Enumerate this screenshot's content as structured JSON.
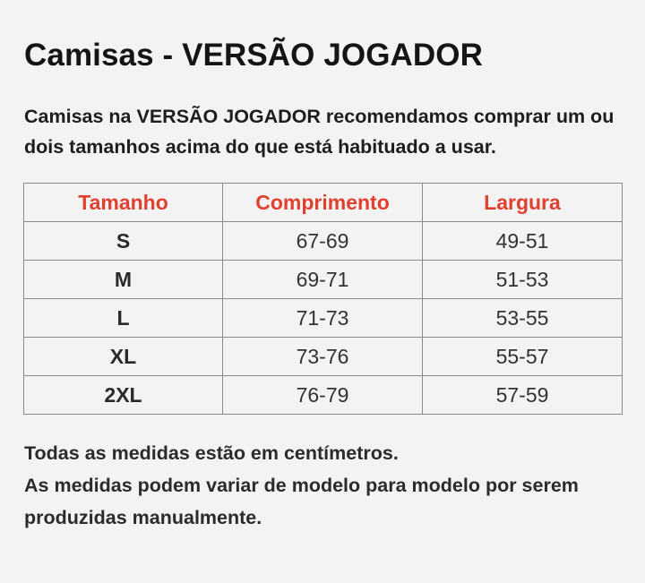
{
  "title": "Camisas - VERSÃO JOGADOR",
  "intro": "Camisas na VERSÃO JOGADOR recomendamos comprar um ou dois tamanhos acima do que está habituado a usar.",
  "table": {
    "headers": [
      "Tamanho",
      "Comprimento",
      "Largura"
    ],
    "rows": [
      [
        "S",
        "67-69",
        "49-51"
      ],
      [
        "M",
        "69-71",
        "51-53"
      ],
      [
        "L",
        "71-73",
        "53-55"
      ],
      [
        "XL",
        "73-76",
        "55-57"
      ],
      [
        "2XL",
        "76-79",
        "57-59"
      ]
    ]
  },
  "footer": {
    "line1": "Todas as medidas estão em centímetros.",
    "line2": "As medidas podem variar de modelo para modelo por serem produzidas manualmente."
  },
  "colors": {
    "header_text": "#e0402f",
    "background": "#f3f3f3"
  }
}
